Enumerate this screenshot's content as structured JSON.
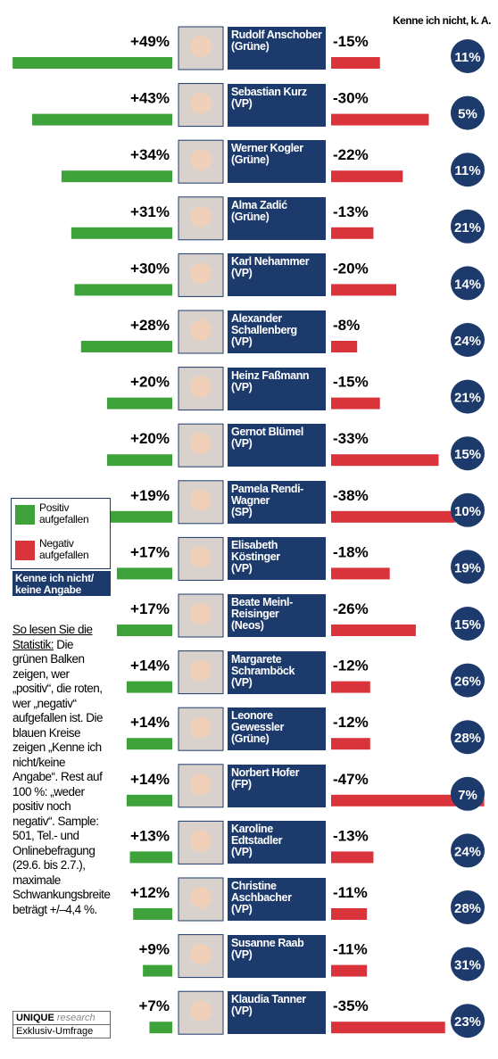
{
  "chart_data": {
    "type": "bar",
    "column_header": "Kenne ich nicht, k. A.",
    "categories": [
      "Rudolf Anschober",
      "Sebastian Kurz",
      "Werner Kogler",
      "Alma Zadić",
      "Karl Nehammer",
      "Alexander Schallenberg",
      "Heinz Faßmann",
      "Gernot Blümel",
      "Pamela Rendi-Wagner",
      "Elisabeth Köstinger",
      "Beate Meinl-Reisinger",
      "Margarete Schramböck",
      "Leonore Gewessler",
      "Norbert Hofer",
      "Karoline Edtstadler",
      "Christine Aschbacher",
      "Susanne Raab",
      "Klaudia Tanner"
    ],
    "parties": [
      "(Grüne)",
      "(VP)",
      "(Grüne)",
      "(Grüne)",
      "(VP)",
      "(VP)",
      "(VP)",
      "(VP)",
      "(SP)",
      "(VP)",
      "(Neos)",
      "(VP)",
      "(Grüne)",
      "(FP)",
      "(VP)",
      "(VP)",
      "(VP)",
      "(VP)"
    ],
    "series": [
      {
        "name": "Positiv aufgefallen",
        "color": "#3ea23a",
        "values": [
          49,
          43,
          34,
          31,
          30,
          28,
          20,
          20,
          19,
          17,
          17,
          14,
          14,
          14,
          13,
          12,
          9,
          7
        ],
        "value_labels": [
          "+49%",
          "+43%",
          "+34%",
          "+31%",
          "+30%",
          "+28%",
          "+20%",
          "+20%",
          "+19%",
          "+17%",
          "+17%",
          "+14%",
          "+14%",
          "+14%",
          "+13%",
          "+12%",
          "+9%",
          "+7%"
        ]
      },
      {
        "name": "Negativ aufgefallen",
        "color": "#d9343c",
        "values": [
          -15,
          -30,
          -22,
          -13,
          -20,
          -8,
          -15,
          -33,
          -38,
          -18,
          -26,
          -12,
          -12,
          -47,
          -13,
          -11,
          -11,
          -35
        ],
        "value_labels": [
          "-15%",
          "-30%",
          "-22%",
          "-13%",
          "-20%",
          "-8%",
          "-15%",
          "-33%",
          "-38%",
          "-18%",
          "-26%",
          "-12%",
          "-12%",
          "-47%",
          "-13%",
          "-11%",
          "-11%",
          "-35%"
        ]
      },
      {
        "name": "Kenne ich nicht/ keine Angabe",
        "color": "#1c3a6c",
        "values": [
          11,
          5,
          11,
          21,
          14,
          24,
          21,
          15,
          10,
          19,
          15,
          26,
          28,
          7,
          24,
          28,
          31,
          23
        ],
        "value_labels": [
          "11%",
          "5%",
          "11%",
          "21%",
          "14%",
          "24%",
          "21%",
          "15%",
          "10%",
          "19%",
          "15%",
          "26%",
          "28%",
          "7%",
          "24%",
          "28%",
          "31%",
          "23%"
        ]
      }
    ],
    "note_heading": "So lesen Sie die Statistik:",
    "note_text": "Die grünen Balken zeigen, wer „positiv“, die roten, wer „negativ“ aufgefallen ist. Die blauen Kreise zeigen „Kenne ich nicht/keine Angabe“. Rest auf 100 %: „weder positiv noch negativ“. Sample: 501, Tel.- und Onlinebefragung (29.6. bis 2.7.), maximale Schwankungsbreite beträgt +/–4,4 %.",
    "source_brand": "UNIQUE",
    "source_brand_sub": "research",
    "source_note": "Exklusiv-Umfrage"
  }
}
